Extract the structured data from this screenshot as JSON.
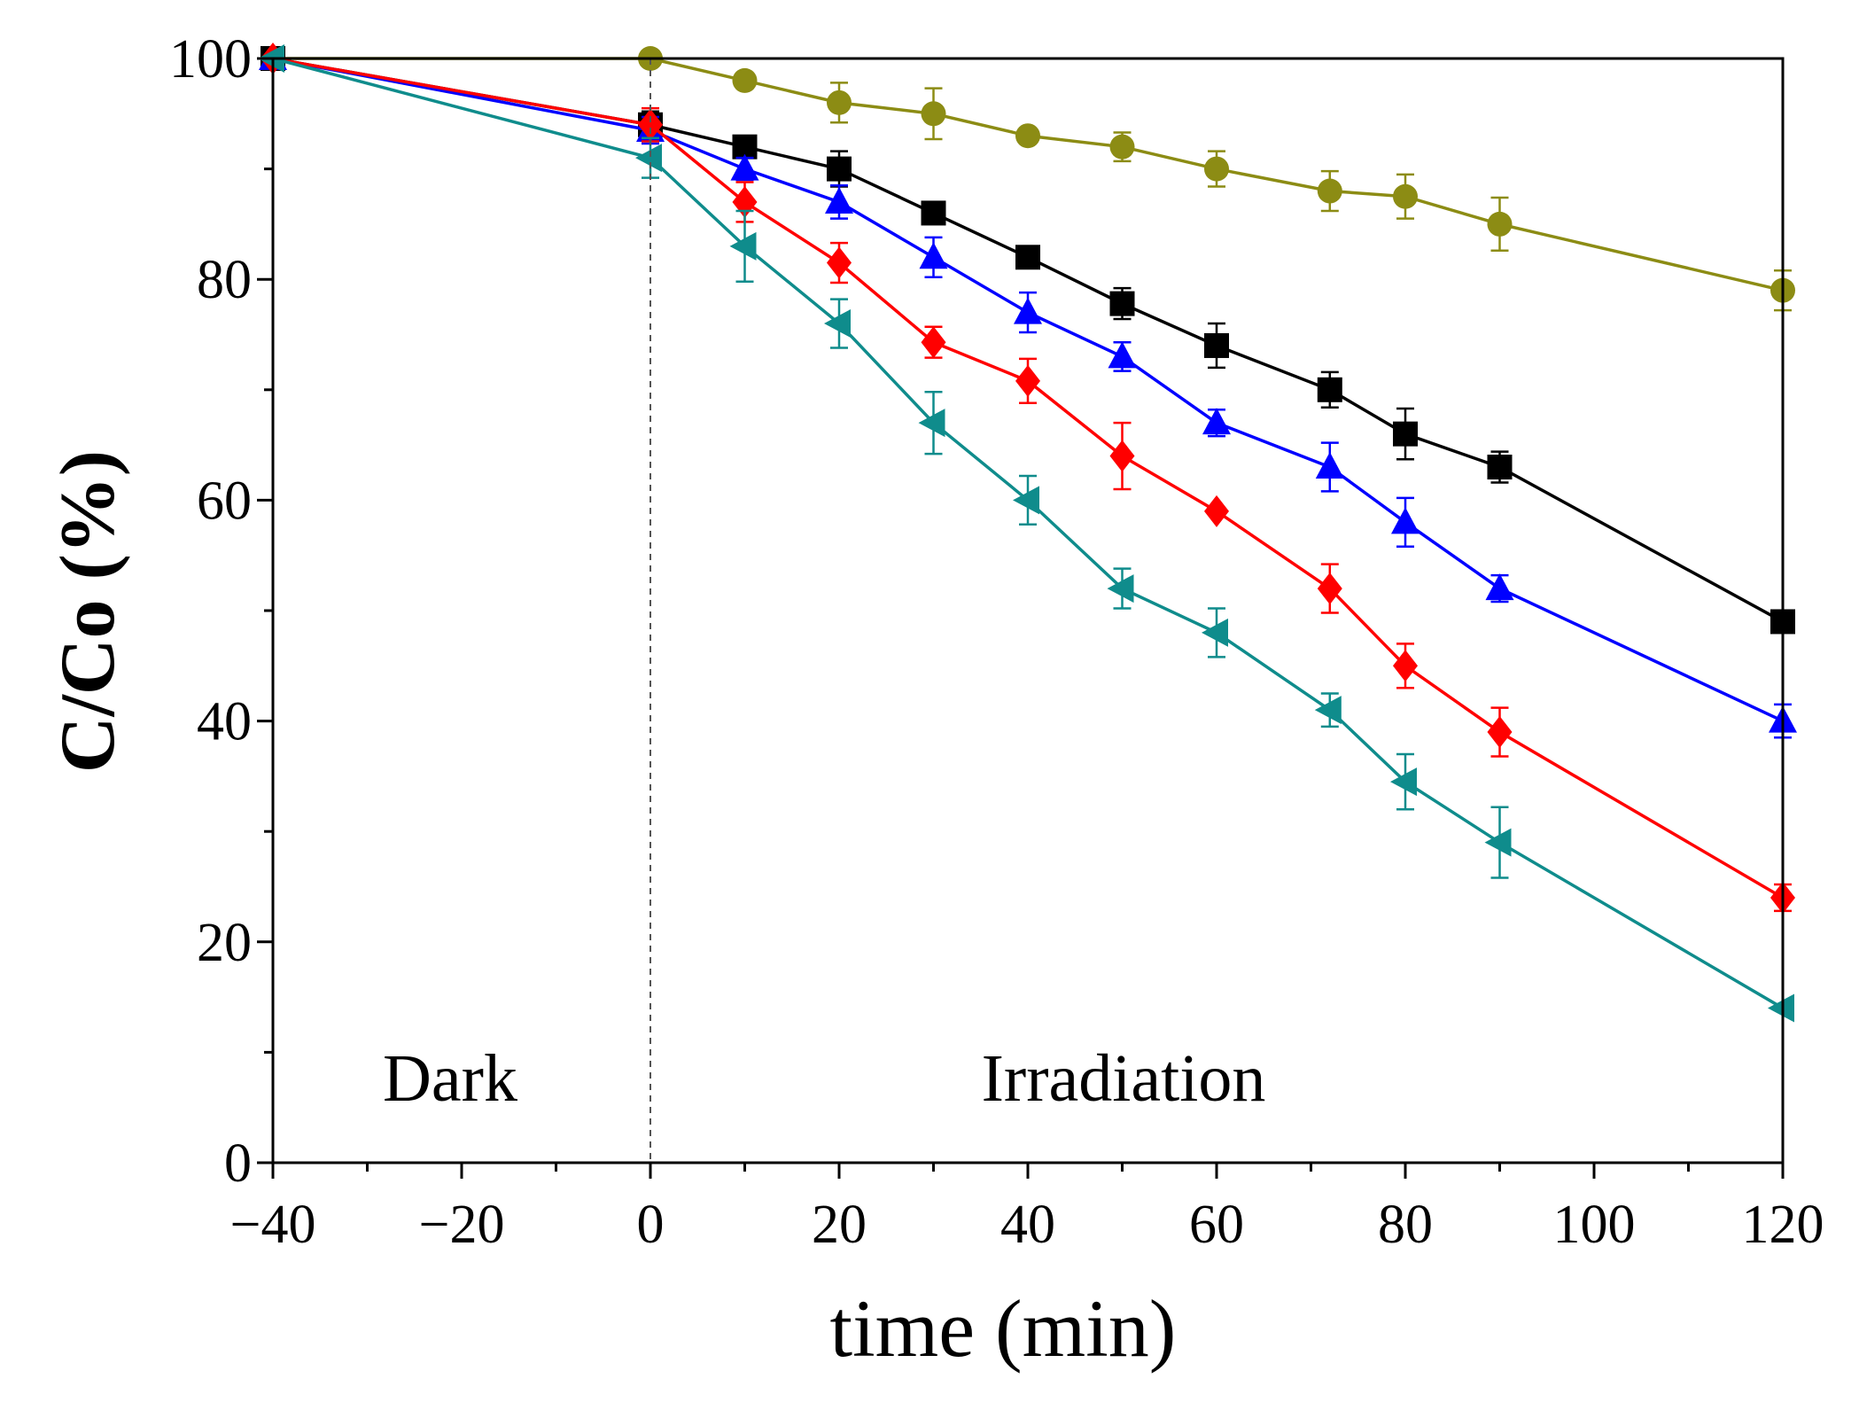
{
  "chart_data": {
    "type": "line",
    "title": "",
    "xlabel": "time (min)",
    "ylabel": "C/Co (%)",
    "xlim": [
      -40,
      120
    ],
    "ylim": [
      0,
      100
    ],
    "xticks": [
      -40,
      -20,
      0,
      20,
      40,
      60,
      80,
      100,
      120
    ],
    "yticks": [
      0,
      20,
      40,
      60,
      80,
      100
    ],
    "xtick_labels": [
      "−40",
      "−20",
      "0",
      "20",
      "40",
      "60",
      "80",
      "100",
      "120"
    ],
    "ytick_labels": [
      "0",
      "20",
      "40",
      "60",
      "80",
      "100"
    ],
    "grid": false,
    "legend": "none",
    "annotations": {
      "dark": "Dark",
      "irradiation": "Irradiation",
      "divider_x": 0
    },
    "series": [
      {
        "name": "olive-circle",
        "color": "#8c8c14",
        "marker": "circle",
        "x": [
          -40,
          0,
          10,
          20,
          30,
          40,
          50,
          60,
          72,
          80,
          90,
          120
        ],
        "y": [
          100,
          100,
          98,
          96,
          95,
          93,
          92,
          90,
          88,
          87.5,
          85,
          79
        ],
        "err": [
          0,
          0,
          0,
          1.8,
          2.3,
          0,
          1.3,
          1.6,
          1.8,
          2,
          2.4,
          1.8
        ]
      },
      {
        "name": "black-square",
        "color": "#000000",
        "marker": "square",
        "x": [
          -40,
          0,
          10,
          20,
          30,
          40,
          50,
          60,
          72,
          80,
          90,
          120
        ],
        "y": [
          100,
          94,
          92,
          90,
          86,
          82,
          77.8,
          74,
          70,
          66,
          63,
          49
        ],
        "err": [
          0,
          1.2,
          0,
          1.6,
          0,
          0,
          1.4,
          2,
          1.6,
          2.3,
          1.4,
          0
        ]
      },
      {
        "name": "blue-triangle-up",
        "color": "#0000ff",
        "marker": "triangle-up",
        "x": [
          -40,
          0,
          10,
          20,
          30,
          40,
          50,
          60,
          72,
          80,
          90,
          120
        ],
        "y": [
          100,
          93.5,
          90,
          87,
          82,
          77,
          73,
          67,
          63,
          58,
          52,
          40
        ],
        "err": [
          0,
          1.2,
          1,
          1.5,
          1.8,
          1.8,
          1.3,
          1.2,
          2.2,
          2.2,
          1.2,
          1.5
        ]
      },
      {
        "name": "red-diamond",
        "color": "#ff0000",
        "marker": "diamond",
        "x": [
          -40,
          0,
          10,
          20,
          30,
          40,
          50,
          60,
          72,
          80,
          90,
          120
        ],
        "y": [
          100,
          94,
          87,
          81.5,
          74.3,
          70.8,
          64,
          59,
          52,
          45,
          39,
          24
        ],
        "err": [
          0,
          1.5,
          1.8,
          1.8,
          1.4,
          2,
          3,
          0,
          2.2,
          2,
          2.2,
          1.2
        ]
      },
      {
        "name": "teal-triangle-left",
        "color": "#0f8c8c",
        "marker": "triangle-left",
        "x": [
          -40,
          0,
          10,
          20,
          30,
          40,
          50,
          60,
          72,
          80,
          90,
          120
        ],
        "y": [
          100,
          91,
          83,
          76,
          67,
          60,
          52,
          48,
          41,
          34.5,
          29,
          14
        ],
        "err": [
          0,
          1.8,
          3.2,
          2.2,
          2.8,
          2.2,
          1.8,
          2.2,
          1.5,
          2.5,
          3.2,
          0
        ]
      }
    ]
  }
}
